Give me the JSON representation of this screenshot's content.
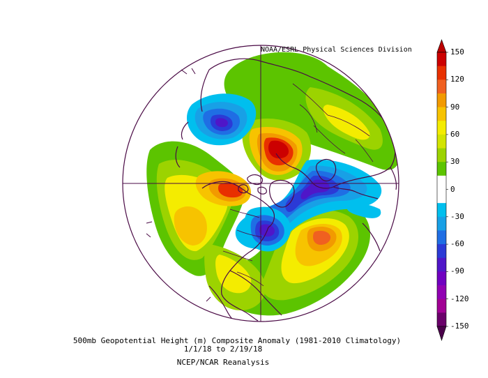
{
  "credit": "NOAA/ESRL Physical Sciences Division",
  "caption": {
    "line1": "500mb Geopotential Height (m) Composite Anomaly (1981-2010 Climatology)",
    "line2": "1/1/18  to 2/19/18",
    "line3": "NCEP/NCAR Reanalysis"
  },
  "colorbar": {
    "labels": [
      "150",
      "120",
      "90",
      "60",
      "30",
      "0",
      "-30",
      "-60",
      "-90",
      "-120",
      "-150"
    ],
    "colors": [
      "#cc0000",
      "#e83000",
      "#f06020",
      "#f29a00",
      "#f7c300",
      "#f4ec00",
      "#d2e400",
      "#9cd300",
      "#5cc400",
      "#ffffff",
      "#ffffff",
      "#00bfee",
      "#18a0e6",
      "#1f6ee4",
      "#2b3ad6",
      "#4f16c8",
      "#7000c0",
      "#9000b2",
      "#a10094",
      "#6a006a"
    ],
    "top_arrow_color": "#bb0000",
    "bottom_arrow_color": "#4a004a"
  },
  "map": {
    "projection": "polar stereographic (northern hemisphere)",
    "coastline_color": "#4a0a45"
  }
}
